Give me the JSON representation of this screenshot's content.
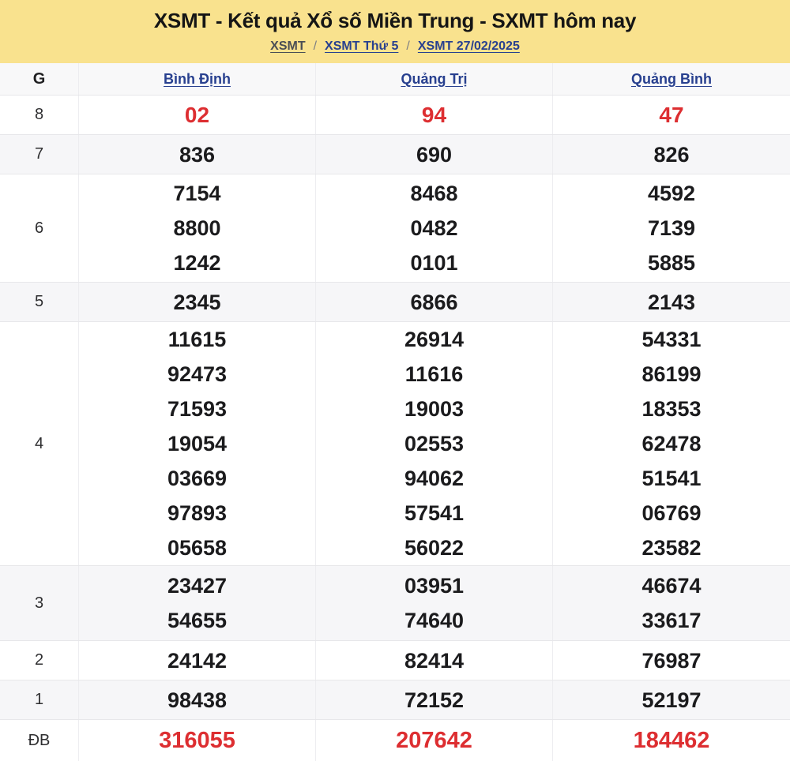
{
  "header": {
    "title": "XSMT - Kết quả Xổ số Miền Trung - SXMT hôm nay",
    "breadcrumb": {
      "separator": "/",
      "items": [
        {
          "label": "XSMT"
        },
        {
          "label": "XSMT Thứ 5"
        },
        {
          "label": "XSMT 27/02/2025"
        }
      ]
    }
  },
  "table": {
    "corner_label": "G",
    "columns": [
      "Bình Định",
      "Quảng Trị",
      "Quảng Bình"
    ],
    "rows": [
      {
        "g": "8",
        "red": true,
        "cells": [
          [
            "02"
          ],
          [
            "94"
          ],
          [
            "47"
          ]
        ]
      },
      {
        "g": "7",
        "red": false,
        "cells": [
          [
            "836"
          ],
          [
            "690"
          ],
          [
            "826"
          ]
        ]
      },
      {
        "g": "6",
        "red": false,
        "cells": [
          [
            "7154",
            "8800",
            "1242"
          ],
          [
            "8468",
            "0482",
            "0101"
          ],
          [
            "4592",
            "7139",
            "5885"
          ]
        ]
      },
      {
        "g": "5",
        "red": false,
        "cells": [
          [
            "2345"
          ],
          [
            "6866"
          ],
          [
            "2143"
          ]
        ]
      },
      {
        "g": "4",
        "red": false,
        "cells": [
          [
            "11615",
            "92473",
            "71593",
            "19054",
            "03669",
            "97893",
            "05658"
          ],
          [
            "26914",
            "11616",
            "19003",
            "02553",
            "94062",
            "57541",
            "56022"
          ],
          [
            "54331",
            "86199",
            "18353",
            "62478",
            "51541",
            "06769",
            "23582"
          ]
        ]
      },
      {
        "g": "3",
        "red": false,
        "cells": [
          [
            "23427",
            "54655"
          ],
          [
            "03951",
            "74640"
          ],
          [
            "46674",
            "33617"
          ]
        ]
      },
      {
        "g": "2",
        "red": false,
        "cells": [
          [
            "24142"
          ],
          [
            "82414"
          ],
          [
            "76987"
          ]
        ]
      },
      {
        "g": "1",
        "red": false,
        "cells": [
          [
            "98438"
          ],
          [
            "72152"
          ],
          [
            "52197"
          ]
        ]
      },
      {
        "g": "ĐB",
        "red": true,
        "cells": [
          [
            "316055"
          ],
          [
            "207642"
          ],
          [
            "184462"
          ]
        ]
      }
    ]
  },
  "colors": {
    "header_bg": "#f9e28e",
    "accent_red": "#dd2e31",
    "link_blue": "#28408f",
    "breadcrumb_first": "#4a4e55",
    "shaded_row": "#f6f6f8"
  }
}
